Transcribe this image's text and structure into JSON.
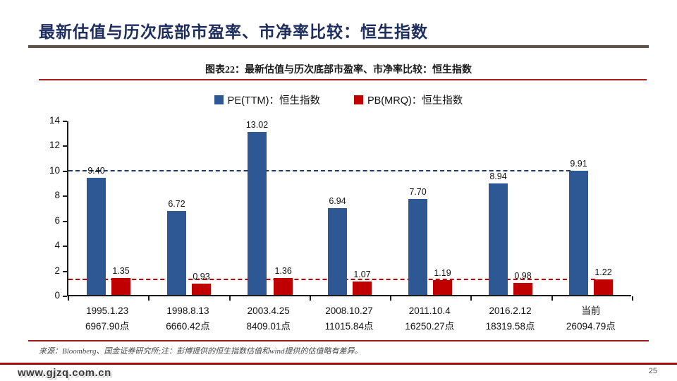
{
  "page": {
    "title": "最新估值与历次底部市盈率、市净率比较：恒生指数",
    "website": "www.gjzq.com.cn",
    "page_number": "25",
    "source_note": "来源：Bloomberg、国金证券研究所;注：彭博提供的恒生指数估值和wind提供的估值略有差异。"
  },
  "figure": {
    "caption": "图表22：最新估值与历次底部市盈率、市净率比较：恒生指数"
  },
  "legend": {
    "pe_label": "PE(TTM)：恒生指数",
    "pb_label": "PB(MRQ)：恒生指数"
  },
  "colors": {
    "pe": "#2e5894",
    "pb": "#c00000",
    "title_navy": "#1d2d5e",
    "header_rule": "#5d5349",
    "caption_rule": "#a51f1f",
    "pe_refline": "#1f3864",
    "pb_refline": "#c00000"
  },
  "chart_data": {
    "type": "bar",
    "title": "图表22：最新估值与历次底部市盈率、市净率比较：恒生指数",
    "categories": [
      {
        "date": "1995.1.23",
        "points": "6967.90点"
      },
      {
        "date": "1998.8.13",
        "points": "6660.42点"
      },
      {
        "date": "2003.4.25",
        "points": "8409.01点"
      },
      {
        "date": "2008.10.27",
        "points": "11015.84点"
      },
      {
        "date": "2011.10.4",
        "points": "16250.27点"
      },
      {
        "date": "2016.2.12",
        "points": "18319.58点"
      },
      {
        "date": "当前",
        "points": "26094.79点"
      }
    ],
    "series": [
      {
        "name": "PE(TTM)：恒生指数",
        "color": "#2e5894",
        "values": [
          9.4,
          6.72,
          13.02,
          6.94,
          7.7,
          8.94,
          9.91
        ]
      },
      {
        "name": "PB(MRQ)：恒生指数",
        "color": "#c00000",
        "values": [
          1.35,
          0.93,
          1.36,
          1.07,
          1.19,
          0.98,
          1.22
        ]
      }
    ],
    "ylim": [
      0,
      14
    ],
    "yticks": [
      0,
      2,
      4,
      6,
      8,
      10,
      12,
      14
    ],
    "reference_lines": [
      {
        "series": "PE(TTM)",
        "value": 9.91,
        "color": "#1f3864",
        "style": "dashed"
      },
      {
        "series": "PB(MRQ)",
        "value": 1.22,
        "color": "#c00000",
        "style": "dashed"
      }
    ],
    "legend_position": "top",
    "grid": false
  }
}
